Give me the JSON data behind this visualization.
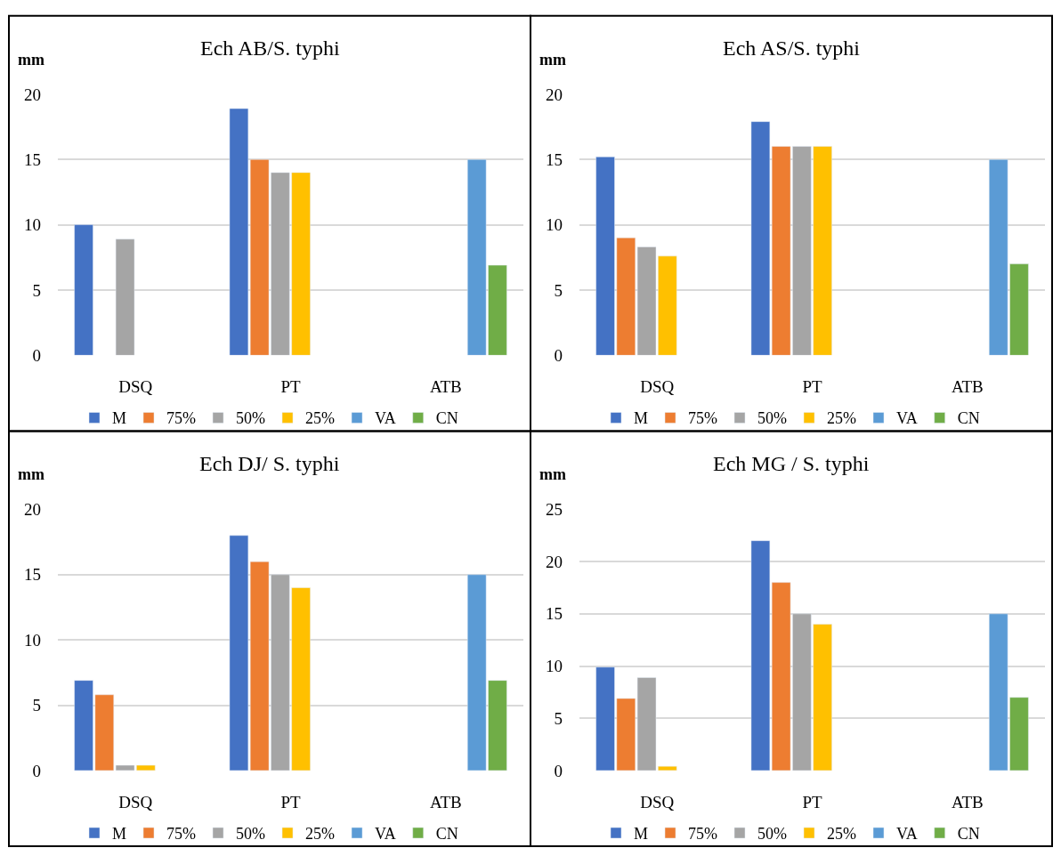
{
  "chart_data": [
    {
      "type": "bar",
      "title": "Ech AB/S. typhi",
      "ylabel": "mm",
      "categories": [
        "DSQ",
        "PT",
        "ATB"
      ],
      "ylim": [
        0,
        20
      ],
      "yticks": [
        0,
        5,
        10,
        15,
        20
      ],
      "grid": "y",
      "legend": "bottom",
      "series": [
        {
          "name": "M",
          "color": "#4472c4",
          "values": [
            10,
            18.9,
            null
          ]
        },
        {
          "name": "75%",
          "color": "#ed7d31",
          "values": [
            null,
            15,
            null
          ]
        },
        {
          "name": "50%",
          "color": "#a5a5a5",
          "values": [
            8.9,
            14,
            null
          ]
        },
        {
          "name": "25%",
          "color": "#ffc000",
          "values": [
            null,
            14,
            null
          ]
        },
        {
          "name": "VA",
          "color": "#5b9bd5",
          "values": [
            null,
            null,
            15
          ]
        },
        {
          "name": "CN",
          "color": "#70ad47",
          "values": [
            null,
            null,
            6.9
          ]
        }
      ]
    },
    {
      "type": "bar",
      "title": "Ech AS/S. typhi",
      "ylabel": "mm",
      "categories": [
        "DSQ",
        "PT",
        "ATB"
      ],
      "ylim": [
        0,
        20
      ],
      "yticks": [
        0,
        5,
        10,
        15,
        20
      ],
      "grid": "y",
      "legend": "bottom",
      "series": [
        {
          "name": "M",
          "color": "#4472c4",
          "values": [
            15.2,
            17.9,
            null
          ]
        },
        {
          "name": "75%",
          "color": "#ed7d31",
          "values": [
            9,
            16,
            null
          ]
        },
        {
          "name": "50%",
          "color": "#a5a5a5",
          "values": [
            8.3,
            16,
            null
          ]
        },
        {
          "name": "25%",
          "color": "#ffc000",
          "values": [
            7.6,
            16,
            null
          ]
        },
        {
          "name": "VA",
          "color": "#5b9bd5",
          "values": [
            null,
            null,
            15
          ]
        },
        {
          "name": "CN",
          "color": "#70ad47",
          "values": [
            null,
            null,
            7
          ]
        }
      ]
    },
    {
      "type": "bar",
      "title": "Ech DJ/ S. typhi",
      "ylabel": "mm",
      "categories": [
        "DSQ",
        "PT",
        "ATB"
      ],
      "ylim": [
        0,
        20
      ],
      "yticks": [
        0,
        5,
        10,
        15,
        20
      ],
      "grid": "y",
      "legend": "bottom",
      "series": [
        {
          "name": "M",
          "color": "#4472c4",
          "values": [
            6.9,
            18,
            null
          ]
        },
        {
          "name": "75%",
          "color": "#ed7d31",
          "values": [
            5.8,
            16,
            null
          ]
        },
        {
          "name": "50%",
          "color": "#a5a5a5",
          "values": [
            0.4,
            15,
            null
          ]
        },
        {
          "name": "25%",
          "color": "#ffc000",
          "values": [
            0.4,
            14,
            null
          ]
        },
        {
          "name": "VA",
          "color": "#5b9bd5",
          "values": [
            null,
            null,
            15
          ]
        },
        {
          "name": "CN",
          "color": "#70ad47",
          "values": [
            null,
            null,
            6.9
          ]
        }
      ]
    },
    {
      "type": "bar",
      "title": "Ech MG / S. typhi",
      "ylabel": "mm",
      "categories": [
        "DSQ",
        "PT",
        "ATB"
      ],
      "ylim": [
        0,
        25
      ],
      "yticks": [
        0,
        5,
        10,
        15,
        20,
        25
      ],
      "grid": "y",
      "legend": "bottom",
      "series": [
        {
          "name": "M",
          "color": "#4472c4",
          "values": [
            9.9,
            22,
            null
          ]
        },
        {
          "name": "75%",
          "color": "#ed7d31",
          "values": [
            6.9,
            18,
            null
          ]
        },
        {
          "name": "50%",
          "color": "#a5a5a5",
          "values": [
            8.9,
            15,
            null
          ]
        },
        {
          "name": "25%",
          "color": "#ffc000",
          "values": [
            0.4,
            14,
            null
          ]
        },
        {
          "name": "VA",
          "color": "#5b9bd5",
          "values": [
            null,
            null,
            15
          ]
        },
        {
          "name": "CN",
          "color": "#70ad47",
          "values": [
            null,
            null,
            7
          ]
        }
      ]
    }
  ]
}
